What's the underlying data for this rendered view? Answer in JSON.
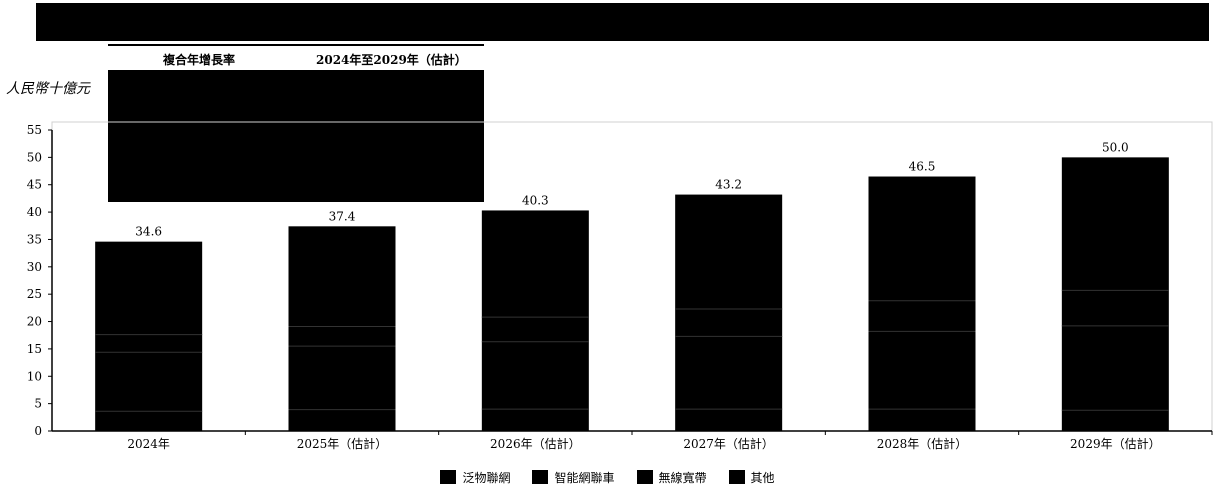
{
  "colors": {
    "background": "#ffffff",
    "bar": "#000000",
    "segment_line": "#333333",
    "axis": "#000000",
    "plot_border": "#d0d0d0"
  },
  "cagr_table": {
    "header_col1": "複合年增長率",
    "header_col2": "2024年至2029年（估計）"
  },
  "chart_data": {
    "type": "bar",
    "stacked": true,
    "title": "",
    "ylabel": "人民幣十億元",
    "xlabel": "",
    "ylim": [
      0,
      55
    ],
    "yticks": [
      0,
      5,
      10,
      15,
      20,
      25,
      30,
      35,
      40,
      45,
      50,
      55
    ],
    "categories": [
      "2024年",
      "2025年（估計）",
      "2026年（估計）",
      "2027年（估計）",
      "2028年（估計）",
      "2029年（估計）"
    ],
    "totals": [
      34.6,
      37.4,
      40.3,
      43.2,
      46.5,
      50.0
    ],
    "total_labels": [
      "34.6",
      "37.4",
      "40.3",
      "43.2",
      "46.5",
      "50.0"
    ],
    "series": [
      {
        "name": "泛物聯網",
        "color": "#000000",
        "values": [
          3.6,
          3.9,
          4.0,
          4.0,
          4.0,
          3.8
        ]
      },
      {
        "name": "智能網聯車",
        "color": "#000000",
        "values": [
          10.8,
          11.6,
          12.3,
          13.3,
          14.2,
          15.4
        ]
      },
      {
        "name": "無線寬帶",
        "color": "#000000",
        "values": [
          3.2,
          3.6,
          4.5,
          5.0,
          5.6,
          6.5
        ]
      },
      {
        "name": "其他",
        "color": "#000000",
        "values": [
          17.0,
          18.3,
          19.5,
          20.9,
          22.7,
          24.3
        ]
      }
    ],
    "grid": false,
    "legend_position": "bottom"
  }
}
